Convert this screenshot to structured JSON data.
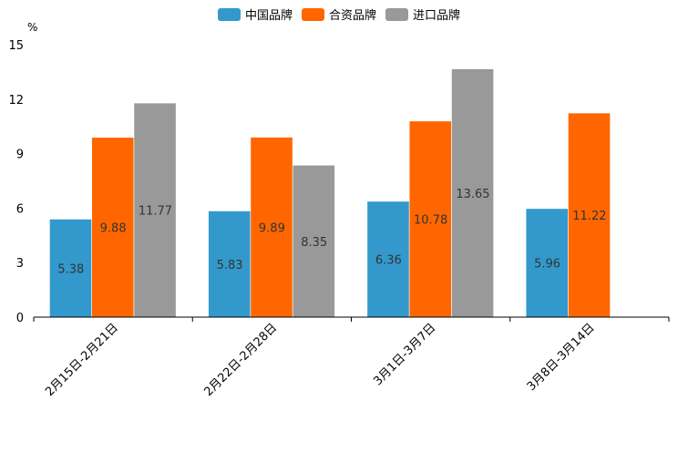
{
  "chart_data": {
    "type": "bar",
    "title": "",
    "xlabel": "",
    "ylabel": "%",
    "ylim": [
      0,
      15
    ],
    "yticks": [
      0,
      3,
      6,
      9,
      12,
      15
    ],
    "legend_position": "top-center",
    "grid": false,
    "categories": [
      "2月15日-2月21日",
      "2月22日-2月28日",
      "3月1日-3月7日",
      "3月8日-3月14日"
    ],
    "series": [
      {
        "name": "中国品牌",
        "color": "#3399cc",
        "values": [
          5.38,
          5.83,
          6.36,
          5.96
        ],
        "labels": [
          "5.38",
          "5.83",
          "6.36",
          "5.96"
        ]
      },
      {
        "name": "合资品牌",
        "color": "#ff6600",
        "values": [
          9.88,
          9.89,
          10.78,
          11.22
        ],
        "labels": [
          "9.88",
          "9.89",
          "10.78",
          "11.22"
        ]
      },
      {
        "name": "进口品牌",
        "color": "#999999",
        "values": [
          11.77,
          8.35,
          13.65,
          null
        ],
        "labels": [
          "11.77",
          "8.35",
          "13.65",
          null
        ]
      }
    ]
  }
}
